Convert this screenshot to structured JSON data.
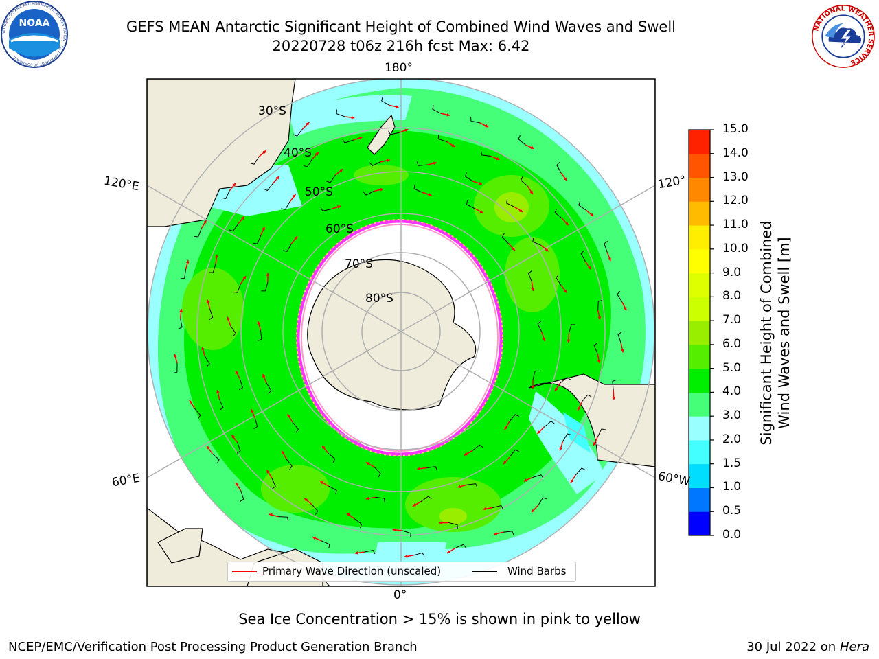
{
  "title": {
    "line1": "GEFS MEAN Antarctic Significant Height of Combined Wind Waves and Swell",
    "line2": "20220728 t06z 216h fcst   Max: 6.42"
  },
  "logos": {
    "left": "NOAA",
    "left_ring": "NATIONAL OCEANIC AND ATMOSPHERIC ADMINISTRATION · U.S. DEPARTMENT OF COMMERCE",
    "right_ring": "NATIONAL WEATHER SERVICE"
  },
  "map": {
    "projection": "south-polar-stereographic",
    "longitude_labels": [
      "180°",
      "120°E",
      "120°",
      "60°E",
      "60°W",
      "0°"
    ],
    "latitude_labels": [
      "30°S",
      "40°S",
      "50°S",
      "60°S",
      "70°S",
      "80°S"
    ],
    "land_color": "#efecdc",
    "sea_ice_colors": [
      "#ff33ff",
      "#ff99cc",
      "#ffcc66"
    ]
  },
  "colorbar": {
    "title_line1": "Significant Height of Combined",
    "title_line2": "Wind Waves and Swell [m]",
    "ticks": [
      "0.0",
      "0.5",
      "1.0",
      "1.5",
      "2.0",
      "3.0",
      "4.0",
      "5.0",
      "6.0",
      "7.0",
      "8.0",
      "9.0",
      "10.0",
      "11.0",
      "12.0",
      "13.0",
      "14.0",
      "15.0"
    ],
    "colors": [
      "#0000ff",
      "#0077ff",
      "#00ddff",
      "#44ffff",
      "#99ffff",
      "#44ff77",
      "#00ee00",
      "#55ee00",
      "#99ee00",
      "#ccff00",
      "#ddff00",
      "#ffff00",
      "#ffee00",
      "#ffbb00",
      "#ff8800",
      "#ff5500",
      "#ff2200"
    ]
  },
  "legend": {
    "wave_label": "Primary Wave Direction (unscaled)",
    "wind_label": "Wind Barbs",
    "wave_color": "#ff0000",
    "wind_color": "#000000"
  },
  "subtitle": "Sea Ice Concentration > 15% is shown in pink to yellow",
  "footer": {
    "left": "NCEP/EMC/Verification Post Processing Product Generation Branch",
    "date": "30 Jul 2022 on ",
    "machine": "Hera"
  }
}
